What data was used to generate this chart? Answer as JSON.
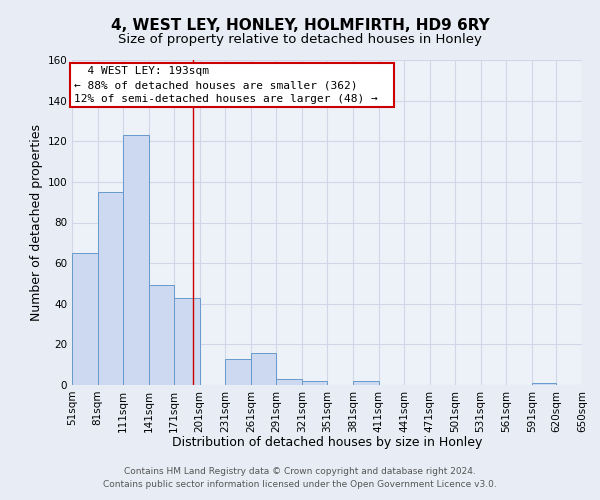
{
  "title": "4, WEST LEY, HONLEY, HOLMFIRTH, HD9 6RY",
  "subtitle": "Size of property relative to detached houses in Honley",
  "xlabel": "Distribution of detached houses by size in Honley",
  "ylabel": "Number of detached properties",
  "bar_values": [
    65,
    95,
    123,
    49,
    43,
    0,
    13,
    16,
    3,
    2,
    0,
    2,
    0,
    0,
    0,
    0,
    0,
    0,
    1,
    0
  ],
  "bin_edges": [
    51,
    81,
    111,
    141,
    171,
    201,
    231,
    261,
    291,
    321,
    351,
    381,
    411,
    441,
    471,
    501,
    531,
    561,
    591,
    620,
    650
  ],
  "tick_labels": [
    "51sqm",
    "81sqm",
    "111sqm",
    "141sqm",
    "171sqm",
    "201sqm",
    "231sqm",
    "261sqm",
    "291sqm",
    "321sqm",
    "351sqm",
    "381sqm",
    "411sqm",
    "441sqm",
    "471sqm",
    "501sqm",
    "531sqm",
    "561sqm",
    "591sqm",
    "620sqm",
    "650sqm"
  ],
  "bar_color": "#ccd9f0",
  "bar_edge_color": "#6699cc",
  "property_line_x": 193,
  "ylim": [
    0,
    160
  ],
  "yticks": [
    0,
    20,
    40,
    60,
    80,
    100,
    120,
    140,
    160
  ],
  "annotation_title": "4 WEST LEY: 193sqm",
  "annotation_line1": "← 88% of detached houses are smaller (362)",
  "annotation_line2": "12% of semi-detached houses are larger (48) →",
  "annotation_box_color": "#ffffff",
  "annotation_box_edge_color": "#cc0000",
  "footer_line1": "Contains HM Land Registry data © Crown copyright and database right 2024.",
  "footer_line2": "Contains public sector information licensed under the Open Government Licence v3.0.",
  "background_color": "#e8edf5",
  "plot_background_color": "#edf1f8",
  "grid_color": "#d0d8e8",
  "title_fontsize": 11,
  "subtitle_fontsize": 9.5,
  "axis_label_fontsize": 9,
  "tick_fontsize": 7.5,
  "footer_fontsize": 6.5,
  "annotation_fontsize": 8
}
